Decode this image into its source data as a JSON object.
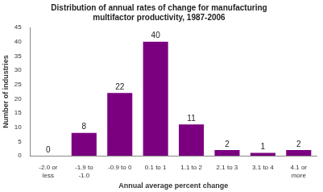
{
  "chart_data": {
    "type": "bar",
    "title": "Distribution of annual rates of change for manufacturing\nmultifactor productivity, 1987-2006",
    "categories": [
      "-2.0 or\nless",
      "-1.9 to\n-1.0",
      "-0.9 to 0",
      "0.1 to 1",
      "1.1 to 2",
      "2.1 to 3",
      "3.1 to 4",
      "4.1 or\nmore"
    ],
    "values": [
      0,
      8,
      22,
      40,
      11,
      2,
      1,
      2
    ],
    "color": "#7B0080",
    "xlabel": "Annual average percent change",
    "ylabel": "Number of industries",
    "ylim": [
      0,
      45
    ],
    "yticks": [
      0,
      5,
      10,
      15,
      20,
      25,
      30,
      35,
      40,
      45
    ],
    "data_labels": true,
    "grid": false
  }
}
